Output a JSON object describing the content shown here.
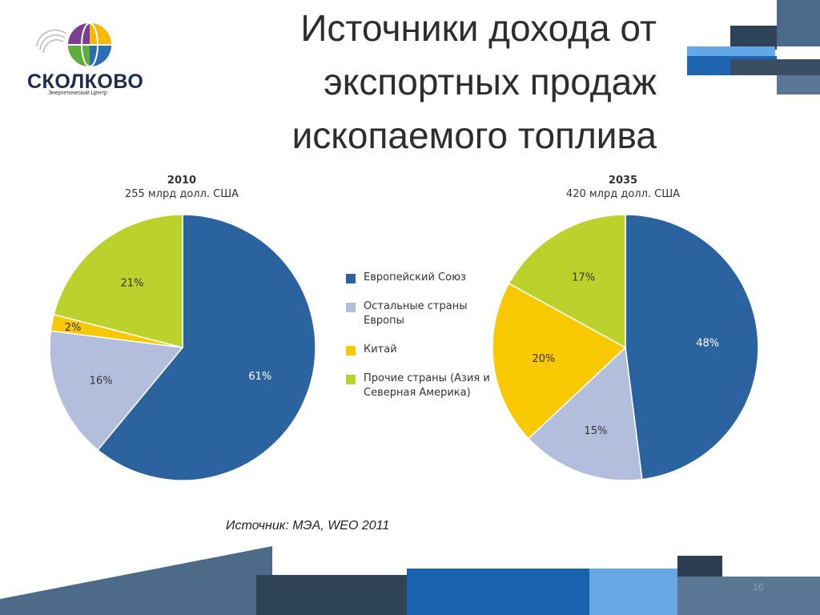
{
  "slide": {
    "title": "Источники дохода от экспортных продаж ископаемого топлива",
    "source": "Источник: МЭА, WEO 2011",
    "page_number": "16"
  },
  "logo": {
    "name": "СКОЛКОВО",
    "subtitle": "Энергетический Центр"
  },
  "legend": [
    {
      "label": "Европейский Союз",
      "color": "#2b63a0"
    },
    {
      "label": "Остальные страны Европы",
      "color": "#b3bedc"
    },
    {
      "label": "Китай",
      "color": "#f8c800"
    },
    {
      "label": "Прочие страны (Азия и Северная Америка)",
      "color": "#bcd22c"
    }
  ],
  "chart_data": [
    {
      "type": "pie",
      "title": "2010",
      "subtitle": "255 млрд долл. США",
      "categories": [
        "Европейский Союз",
        "Остальные страны Европы",
        "Китай",
        "Прочие страны (Азия и Северная Америка)"
      ],
      "values": [
        61,
        16,
        2,
        21
      ],
      "labels": [
        "61%",
        "16%",
        "2%",
        "21%"
      ],
      "colors": [
        "#2b63a0",
        "#b3bedc",
        "#f8c800",
        "#bcd22c"
      ]
    },
    {
      "type": "pie",
      "title": "2035",
      "subtitle": "420 млрд долл. США",
      "categories": [
        "Европейский Союз",
        "Остальные страны Европы",
        "Китай",
        "Прочие страны (Азия и Северная Америка)"
      ],
      "values": [
        48,
        15,
        20,
        17
      ],
      "labels": [
        "48%",
        "15%",
        "20%",
        "17%"
      ],
      "colors": [
        "#2b63a0",
        "#b3bedc",
        "#f8c800",
        "#bcd22c"
      ]
    }
  ]
}
